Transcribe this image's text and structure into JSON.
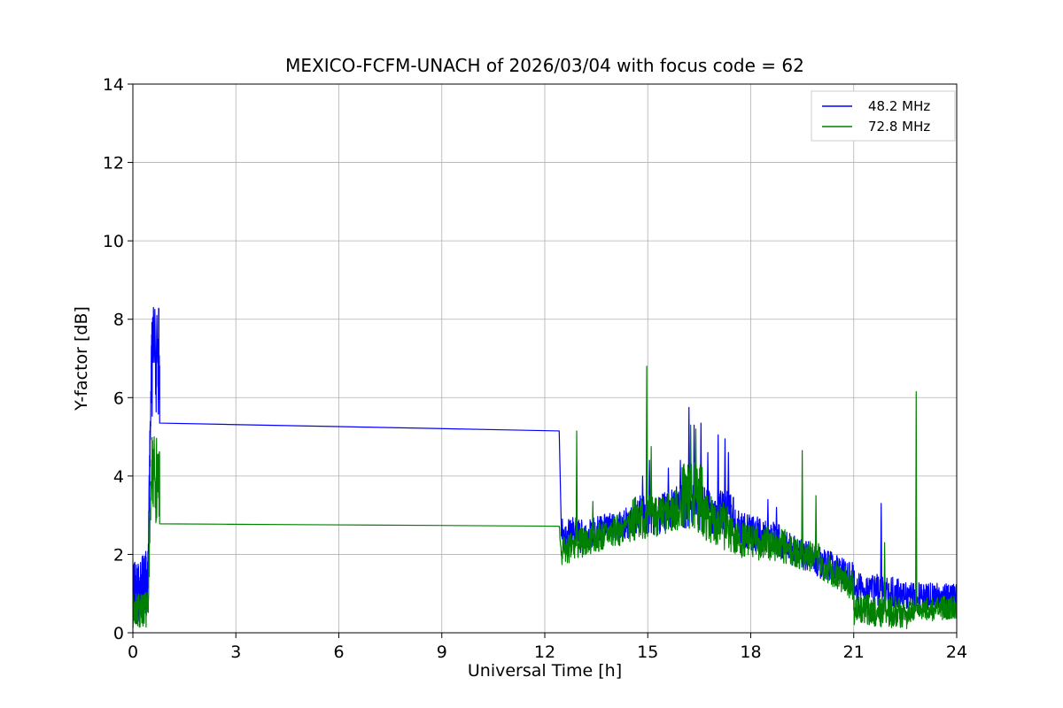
{
  "figure": {
    "title": "MEXICO-FCFM-UNACH of 2026/03/04 with focus code = 62",
    "xlabel": "Universal Time [h]",
    "ylabel": "Y-factor [dB]"
  },
  "chart_data": {
    "type": "line",
    "title": "MEXICO-FCFM-UNACH of 2026/03/04 with focus code = 62",
    "xlabel": "Universal Time [h]",
    "ylabel": "Y-factor [dB]",
    "xlim": [
      0,
      24
    ],
    "ylim": [
      0,
      14
    ],
    "xticks": [
      0,
      3,
      6,
      9,
      12,
      15,
      18,
      21,
      24
    ],
    "yticks": [
      0,
      2,
      4,
      6,
      8,
      10,
      12,
      14
    ],
    "grid": true,
    "grid_color": "#b0b0b0",
    "background": "#ffffff",
    "legend_position": "upper right",
    "series": [
      {
        "name": "48.2 MHz",
        "color": "#0000ff",
        "seed": 42,
        "segments": [
          {
            "x0": 0.0,
            "x1": 0.45,
            "y0": 1.1,
            "y1": 1.2,
            "noise": 0.9,
            "step": 0.005
          },
          {
            "x0": 0.45,
            "x1": 0.55,
            "y0": 2.2,
            "y1": 7.4,
            "noise": 0.7,
            "step": 0.004
          },
          {
            "x0": 0.55,
            "x1": 0.78,
            "y0": 6.9,
            "y1": 6.9,
            "noise": 1.4,
            "step": 0.004,
            "spikes": [
              {
                "x": 0.6,
                "y": 8.3
              },
              {
                "x": 0.64,
                "y": 8.25
              },
              {
                "x": 0.7,
                "y": 8.1
              }
            ]
          },
          {
            "x0": 0.78,
            "x1": 12.42,
            "y0": 5.35,
            "y1": 5.15,
            "noise": 0,
            "step": 2
          },
          {
            "x0": 12.42,
            "x1": 12.48,
            "y0": 5.15,
            "y1": 2.7,
            "noise": 0,
            "step": 0.02
          },
          {
            "x0": 12.48,
            "x1": 13.2,
            "y0": 2.55,
            "y1": 2.45,
            "noise": 0.45,
            "step": 0.008
          },
          {
            "x0": 13.2,
            "x1": 14.6,
            "y0": 2.5,
            "y1": 2.85,
            "noise": 0.4,
            "step": 0.008
          },
          {
            "x0": 14.6,
            "x1": 15.3,
            "y0": 3.0,
            "y1": 3.0,
            "noise": 0.5,
            "step": 0.008,
            "spikes": [
              {
                "x": 14.85,
                "y": 4.0
              },
              {
                "x": 15.05,
                "y": 4.4
              }
            ]
          },
          {
            "x0": 15.3,
            "x1": 16.0,
            "y0": 3.0,
            "y1": 3.3,
            "noise": 0.5,
            "step": 0.008,
            "spikes": [
              {
                "x": 15.6,
                "y": 4.2
              },
              {
                "x": 15.95,
                "y": 4.4
              }
            ]
          },
          {
            "x0": 16.0,
            "x1": 17.5,
            "y0": 3.3,
            "y1": 3.0,
            "noise": 0.6,
            "step": 0.008,
            "spikes": [
              {
                "x": 16.2,
                "y": 5.75
              },
              {
                "x": 16.35,
                "y": 5.3
              },
              {
                "x": 16.55,
                "y": 5.35
              },
              {
                "x": 16.75,
                "y": 4.6
              },
              {
                "x": 17.05,
                "y": 5.05
              },
              {
                "x": 17.25,
                "y": 4.95
              },
              {
                "x": 17.35,
                "y": 4.6
              }
            ]
          },
          {
            "x0": 17.5,
            "x1": 19.0,
            "y0": 2.7,
            "y1": 2.3,
            "noise": 0.45,
            "step": 0.008,
            "spikes": [
              {
                "x": 18.5,
                "y": 3.4
              },
              {
                "x": 18.75,
                "y": 3.2
              }
            ]
          },
          {
            "x0": 19.0,
            "x1": 21.0,
            "y0": 2.2,
            "y1": 1.4,
            "noise": 0.4,
            "step": 0.008
          },
          {
            "x0": 21.0,
            "x1": 22.3,
            "y0": 1.2,
            "y1": 1.0,
            "noise": 0.4,
            "step": 0.008,
            "spikes": [
              {
                "x": 21.8,
                "y": 3.3
              }
            ]
          },
          {
            "x0": 22.3,
            "x1": 24.0,
            "y0": 0.95,
            "y1": 0.9,
            "noise": 0.35,
            "step": 0.008
          }
        ]
      },
      {
        "name": "72.8 MHz",
        "color": "#008000",
        "seed": 7,
        "segments": [
          {
            "x0": 0.0,
            "x1": 0.45,
            "y0": 0.55,
            "y1": 0.6,
            "noise": 0.45,
            "step": 0.005
          },
          {
            "x0": 0.45,
            "x1": 0.55,
            "y0": 1.2,
            "y1": 4.2,
            "noise": 0.5,
            "step": 0.004
          },
          {
            "x0": 0.55,
            "x1": 0.78,
            "y0": 3.9,
            "y1": 3.9,
            "noise": 1.1,
            "step": 0.004,
            "spikes": [
              {
                "x": 0.62,
                "y": 5.0
              }
            ]
          },
          {
            "x0": 0.78,
            "x1": 12.42,
            "y0": 2.78,
            "y1": 2.72,
            "noise": 0,
            "step": 2
          },
          {
            "x0": 12.42,
            "x1": 12.5,
            "y0": 2.72,
            "y1": 1.75,
            "noise": 0.12,
            "step": 0.01
          },
          {
            "x0": 12.5,
            "x1": 13.0,
            "y0": 2.05,
            "y1": 2.25,
            "noise": 0.4,
            "step": 0.008,
            "spikes": [
              {
                "x": 12.93,
                "y": 5.15
              }
            ]
          },
          {
            "x0": 13.0,
            "x1": 14.5,
            "y0": 2.3,
            "y1": 2.7,
            "noise": 0.4,
            "step": 0.008,
            "spikes": [
              {
                "x": 13.4,
                "y": 3.35
              }
            ]
          },
          {
            "x0": 14.5,
            "x1": 15.3,
            "y0": 2.9,
            "y1": 3.0,
            "noise": 0.55,
            "step": 0.008,
            "spikes": [
              {
                "x": 14.97,
                "y": 6.8
              },
              {
                "x": 15.1,
                "y": 4.75
              }
            ]
          },
          {
            "x0": 15.3,
            "x1": 16.0,
            "y0": 2.9,
            "y1": 3.2,
            "noise": 0.55,
            "step": 0.008
          },
          {
            "x0": 16.0,
            "x1": 16.6,
            "y0": 3.5,
            "y1": 3.4,
            "noise": 0.9,
            "step": 0.006,
            "spikes": [
              {
                "x": 16.25,
                "y": 5.3
              },
              {
                "x": 16.4,
                "y": 5.2
              }
            ]
          },
          {
            "x0": 16.6,
            "x1": 17.5,
            "y0": 3.0,
            "y1": 2.6,
            "noise": 0.6,
            "step": 0.008
          },
          {
            "x0": 17.5,
            "x1": 19.0,
            "y0": 2.4,
            "y1": 2.2,
            "noise": 0.45,
            "step": 0.008
          },
          {
            "x0": 19.0,
            "x1": 20.0,
            "y0": 2.1,
            "y1": 1.9,
            "noise": 0.4,
            "step": 0.008,
            "spikes": [
              {
                "x": 19.5,
                "y": 4.65
              },
              {
                "x": 19.9,
                "y": 3.5
              }
            ]
          },
          {
            "x0": 20.0,
            "x1": 21.0,
            "y0": 1.8,
            "y1": 1.2,
            "noise": 0.4,
            "step": 0.008
          },
          {
            "x0": 21.0,
            "x1": 22.6,
            "y0": 0.6,
            "y1": 0.5,
            "noise": 0.4,
            "step": 0.008,
            "spikes": [
              {
                "x": 21.9,
                "y": 2.3
              }
            ]
          },
          {
            "x0": 22.6,
            "x1": 24.0,
            "y0": 0.55,
            "y1": 0.65,
            "noise": 0.3,
            "step": 0.008,
            "spikes": [
              {
                "x": 22.82,
                "y": 6.15
              }
            ]
          }
        ]
      }
    ]
  }
}
